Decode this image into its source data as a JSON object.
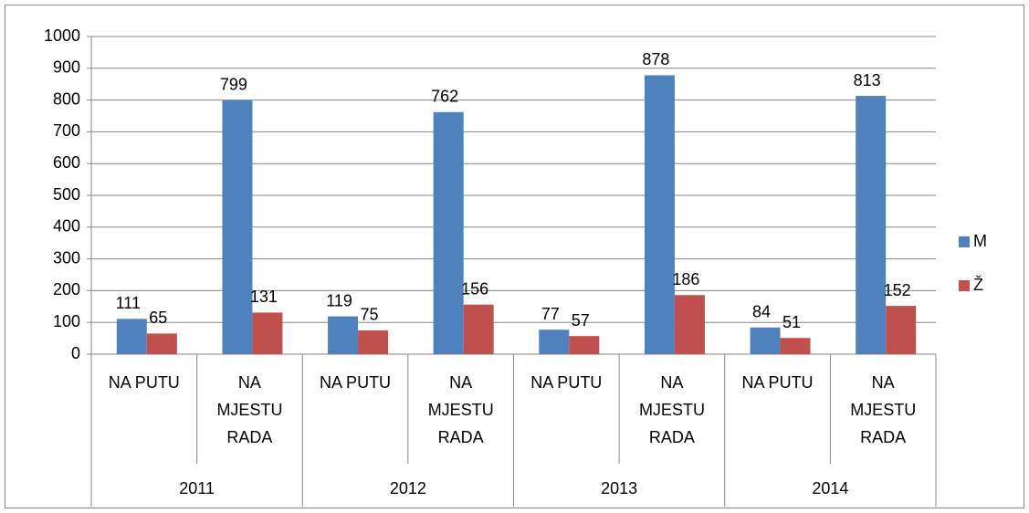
{
  "chart_data": {
    "type": "bar",
    "categories": [
      "NA PUTU",
      "NA MJESTU RADA",
      "NA PUTU",
      "NA MJESTU RADA",
      "NA PUTU",
      "NA MJESTU RADA",
      "NA PUTU",
      "NA MJESTU RADA"
    ],
    "groups": [
      "2011",
      "2012",
      "2013",
      "2014"
    ],
    "series": [
      {
        "name": "M",
        "color": "#4f81bd",
        "values": [
          111,
          799,
          119,
          762,
          77,
          878,
          84,
          813
        ]
      },
      {
        "name": "Ž",
        "color": "#c0504d",
        "values": [
          65,
          131,
          75,
          156,
          57,
          186,
          51,
          152
        ]
      }
    ],
    "ylim": [
      0,
      1000
    ],
    "yticks": [
      0,
      100,
      200,
      300,
      400,
      500,
      600,
      700,
      800,
      900,
      1000
    ],
    "grid": true,
    "legend": "right"
  }
}
